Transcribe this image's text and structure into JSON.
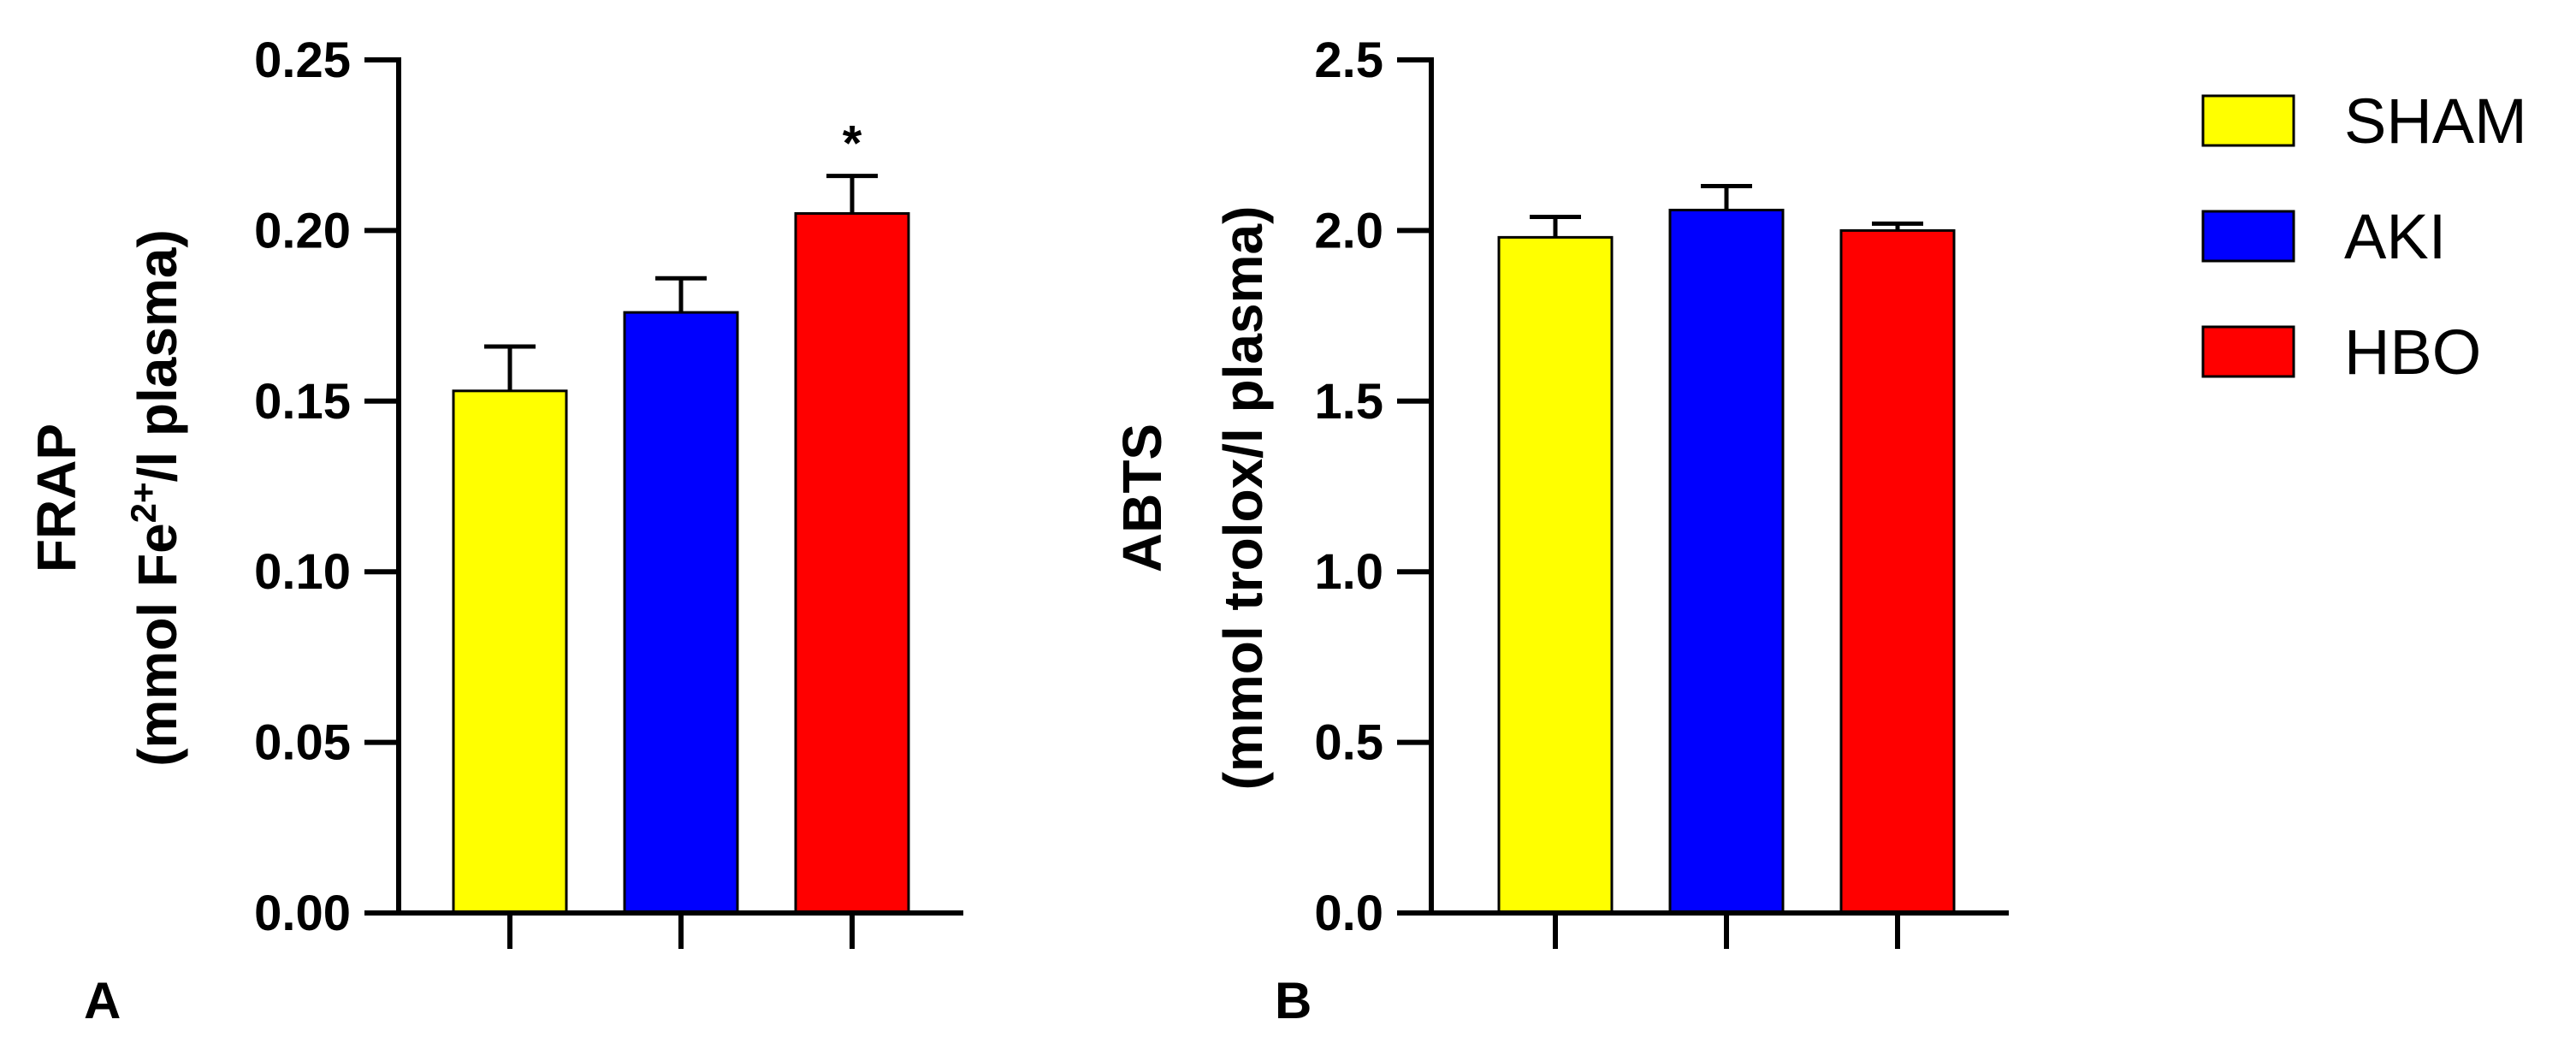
{
  "chart_data": [
    {
      "type": "bar",
      "panel_label": "A",
      "categories": [
        "SHAM",
        "AKI",
        "HBO"
      ],
      "values": [
        0.153,
        0.176,
        0.205
      ],
      "errors": [
        0.013,
        0.01,
        0.011
      ],
      "significance": [
        "",
        "",
        "*"
      ],
      "ylabel_line1": "FRAP",
      "ylabel_line2_pre": "(mmol Fe",
      "ylabel_line2_sup": "2+",
      "ylabel_line2_post": "/l plasma)",
      "ylim": [
        0,
        0.25
      ],
      "yticks": [
        "0.00",
        "0.05",
        "0.10",
        "0.15",
        "0.20",
        "0.25"
      ],
      "grid": false
    },
    {
      "type": "bar",
      "panel_label": "B",
      "categories": [
        "SHAM",
        "AKI",
        "HBO"
      ],
      "values": [
        1.98,
        2.06,
        2.0
      ],
      "errors": [
        0.06,
        0.07,
        0.02
      ],
      "significance": [
        "",
        "",
        ""
      ],
      "ylabel_line1": "ABTS",
      "ylabel_line2_pre": "(mmol trolox/l plasma)",
      "ylabel_line2_sup": "",
      "ylabel_line2_post": "",
      "ylim": [
        0,
        2.5
      ],
      "yticks": [
        "0.0",
        "0.5",
        "1.0",
        "1.5",
        "2.0",
        "2.5"
      ],
      "grid": false
    }
  ],
  "legend": {
    "placement": "right",
    "items": [
      {
        "label": "SHAM",
        "color": "#ffff00"
      },
      {
        "label": "AKI",
        "color": "#0000ff"
      },
      {
        "label": "HBO",
        "color": "#ff0000"
      }
    ]
  }
}
